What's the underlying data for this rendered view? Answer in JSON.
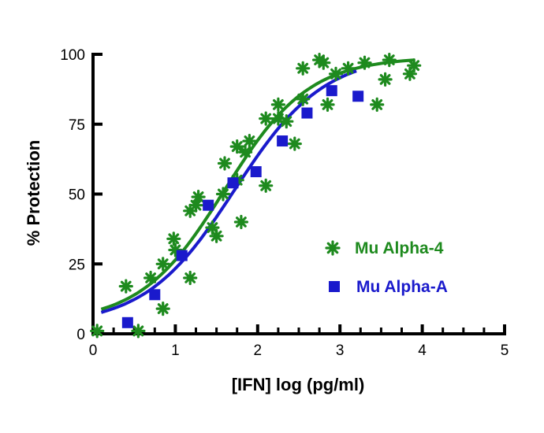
{
  "chart_data": {
    "type": "scatter",
    "xlabel": "[IFN] log (pg/ml)",
    "ylabel": "% Protection",
    "xlim": [
      0,
      5
    ],
    "ylim": [
      0,
      100
    ],
    "x_ticks": [
      "0",
      "1",
      "2",
      "3",
      "4",
      "5"
    ],
    "y_ticks": [
      "0",
      "25",
      "50",
      "75",
      "100"
    ],
    "legend_position": "right-center",
    "grid": false,
    "series": [
      {
        "name": "Mu Alpha-4",
        "color": "#1e8a1e",
        "marker": "asterisk",
        "points": [
          [
            0.05,
            1
          ],
          [
            0.4,
            17
          ],
          [
            0.55,
            1
          ],
          [
            0.7,
            20
          ],
          [
            0.85,
            9
          ],
          [
            0.85,
            25
          ],
          [
            0.98,
            34
          ],
          [
            1.0,
            30
          ],
          [
            1.18,
            20
          ],
          [
            1.18,
            44
          ],
          [
            1.25,
            46
          ],
          [
            1.28,
            49
          ],
          [
            1.45,
            38
          ],
          [
            1.5,
            35
          ],
          [
            1.58,
            50
          ],
          [
            1.6,
            61
          ],
          [
            1.75,
            55
          ],
          [
            1.75,
            67
          ],
          [
            1.8,
            40
          ],
          [
            1.85,
            65
          ],
          [
            1.9,
            69
          ],
          [
            2.1,
            53
          ],
          [
            2.1,
            77
          ],
          [
            2.25,
            82
          ],
          [
            2.25,
            77
          ],
          [
            2.35,
            76
          ],
          [
            2.45,
            68
          ],
          [
            2.55,
            84
          ],
          [
            2.55,
            95
          ],
          [
            2.75,
            98
          ],
          [
            2.8,
            97
          ],
          [
            2.85,
            82
          ],
          [
            2.95,
            93
          ],
          [
            3.1,
            95
          ],
          [
            3.3,
            97
          ],
          [
            3.45,
            82
          ],
          [
            3.55,
            91
          ],
          [
            3.6,
            98
          ],
          [
            3.85,
            93
          ],
          [
            3.9,
            96
          ]
        ],
        "fit": {
          "bottom": 4,
          "top": 99,
          "logEC50": 1.6,
          "hill": 0.85,
          "x_range": [
            0.1,
            3.9
          ]
        }
      },
      {
        "name": "Mu Alpha-A",
        "color": "#1a1acc",
        "marker": "square",
        "points": [
          [
            0.42,
            4
          ],
          [
            0.75,
            14
          ],
          [
            1.08,
            28
          ],
          [
            1.4,
            46
          ],
          [
            1.7,
            54
          ],
          [
            1.98,
            58
          ],
          [
            2.3,
            69
          ],
          [
            2.6,
            79
          ],
          [
            2.9,
            87
          ],
          [
            3.22,
            85
          ]
        ],
        "fit": {
          "bottom": 3,
          "top": 100,
          "logEC50": 1.72,
          "hill": 0.8,
          "x_range": [
            0.1,
            3.2
          ]
        }
      }
    ]
  }
}
